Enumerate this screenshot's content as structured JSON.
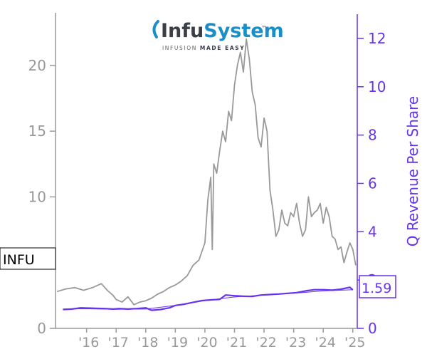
{
  "ticker": "INFU",
  "logo": {
    "name_part1": "Infu",
    "name_part2": "System",
    "tagline_part1": "INFUSION ",
    "tagline_part2": "MADE EASY",
    "tm": "™",
    "color_dark": "#3a3f47",
    "color_blue": "#1a8fc7"
  },
  "chart_data": {
    "type": "line",
    "x_tick_labels": [
      "'16",
      "'17",
      "'18",
      "'19",
      "'20",
      "'21",
      "'22",
      "'23",
      "'24",
      "'25"
    ],
    "x_ticks": [
      2016,
      2017,
      2018,
      2019,
      2020,
      2021,
      2022,
      2023,
      2024,
      2025
    ],
    "xlim": [
      2014.95,
      2025.15
    ],
    "left_axis": {
      "label": "",
      "ylim": [
        0,
        24
      ],
      "ticks": [
        0,
        5,
        10,
        15,
        20
      ],
      "color": "#999999"
    },
    "right_axis": {
      "label": "Q Revenue Per Share",
      "ylim": [
        0,
        13
      ],
      "ticks": [
        0,
        2,
        4,
        6,
        8,
        10,
        12
      ],
      "color": "#6633ee"
    },
    "latest_revenue_label": "1.59",
    "series": [
      {
        "axis": "left",
        "color": "#999999",
        "x": [
          2015.0,
          2015.3,
          2015.6,
          2015.9,
          2016.2,
          2016.5,
          2016.7,
          2016.9,
          2017.0,
          2017.2,
          2017.4,
          2017.6,
          2017.8,
          2018.0,
          2018.2,
          2018.4,
          2018.6,
          2018.8,
          2019.0,
          2019.2,
          2019.4,
          2019.6,
          2019.8,
          2020.0,
          2020.1,
          2020.2,
          2020.25,
          2020.3,
          2020.4,
          2020.5,
          2020.6,
          2020.7,
          2020.8,
          2020.9,
          2021.0,
          2021.1,
          2021.2,
          2021.3,
          2021.4,
          2021.5,
          2021.6,
          2021.7,
          2021.8,
          2021.9,
          2022.0,
          2022.1,
          2022.2,
          2022.3,
          2022.4,
          2022.5,
          2022.6,
          2022.7,
          2022.8,
          2022.9,
          2023.0,
          2023.1,
          2023.2,
          2023.3,
          2023.4,
          2023.5,
          2023.6,
          2023.7,
          2023.8,
          2023.9,
          2024.0,
          2024.1,
          2024.2,
          2024.3,
          2024.4,
          2024.5,
          2024.6,
          2024.7,
          2024.8,
          2024.9,
          2025.0,
          2025.1
        ],
        "values": [
          2.8,
          3.0,
          3.1,
          2.9,
          3.1,
          3.4,
          2.9,
          2.5,
          2.2,
          2.0,
          2.4,
          1.8,
          2.0,
          2.1,
          2.3,
          2.6,
          2.8,
          3.1,
          3.3,
          3.6,
          4.0,
          4.8,
          5.2,
          6.5,
          9.8,
          11.5,
          6.0,
          12.5,
          11.8,
          13.5,
          15.0,
          14.2,
          16.5,
          15.8,
          18.5,
          20.0,
          21.0,
          19.5,
          22.0,
          20.5,
          18.0,
          17.0,
          14.5,
          13.8,
          16.0,
          15.0,
          10.5,
          9.0,
          7.0,
          7.5,
          9.0,
          8.0,
          7.8,
          8.8,
          8.5,
          9.5,
          8.0,
          7.0,
          7.5,
          10.0,
          8.5,
          8.8,
          9.0,
          9.5,
          8.0,
          9.2,
          8.5,
          7.0,
          6.8,
          6.0,
          6.2,
          5.0,
          5.8,
          6.5,
          6.0,
          4.8
        ]
      },
      {
        "axis": "right",
        "name": "",
        "color": "#6633ee",
        "x": [
          2015.2,
          2015.5,
          2015.8,
          2016.0,
          2016.3,
          2016.6,
          2016.9,
          2017.1,
          2017.4,
          2017.7,
          2018.0,
          2018.2,
          2018.5,
          2018.8,
          2019.0,
          2019.3,
          2019.6,
          2019.9,
          2020.2,
          2020.5,
          2020.7,
          2021.0,
          2021.3,
          2021.6,
          2021.9,
          2022.2,
          2022.5,
          2022.8,
          2023.1,
          2023.4,
          2023.7,
          2024.0,
          2024.3,
          2024.6,
          2024.9,
          2025.0
        ],
        "values": [
          0.78,
          0.8,
          0.85,
          0.84,
          0.83,
          0.82,
          0.8,
          0.82,
          0.8,
          0.82,
          0.85,
          0.75,
          0.78,
          0.85,
          0.95,
          1.0,
          1.08,
          1.15,
          1.18,
          1.2,
          1.38,
          1.35,
          1.33,
          1.32,
          1.38,
          1.4,
          1.42,
          1.45,
          1.48,
          1.55,
          1.6,
          1.6,
          1.58,
          1.62,
          1.7,
          1.59
        ]
      },
      {
        "axis": "right",
        "name": "",
        "color": "#6633ee",
        "trend": true,
        "x": [
          2015.2,
          2016.0,
          2017.0,
          2018.0,
          2019.0,
          2020.0,
          2021.0,
          2022.0,
          2023.0,
          2024.0,
          2025.0
        ],
        "values": [
          0.8,
          0.81,
          0.79,
          0.8,
          0.95,
          1.15,
          1.3,
          1.38,
          1.45,
          1.55,
          1.6
        ]
      }
    ]
  }
}
